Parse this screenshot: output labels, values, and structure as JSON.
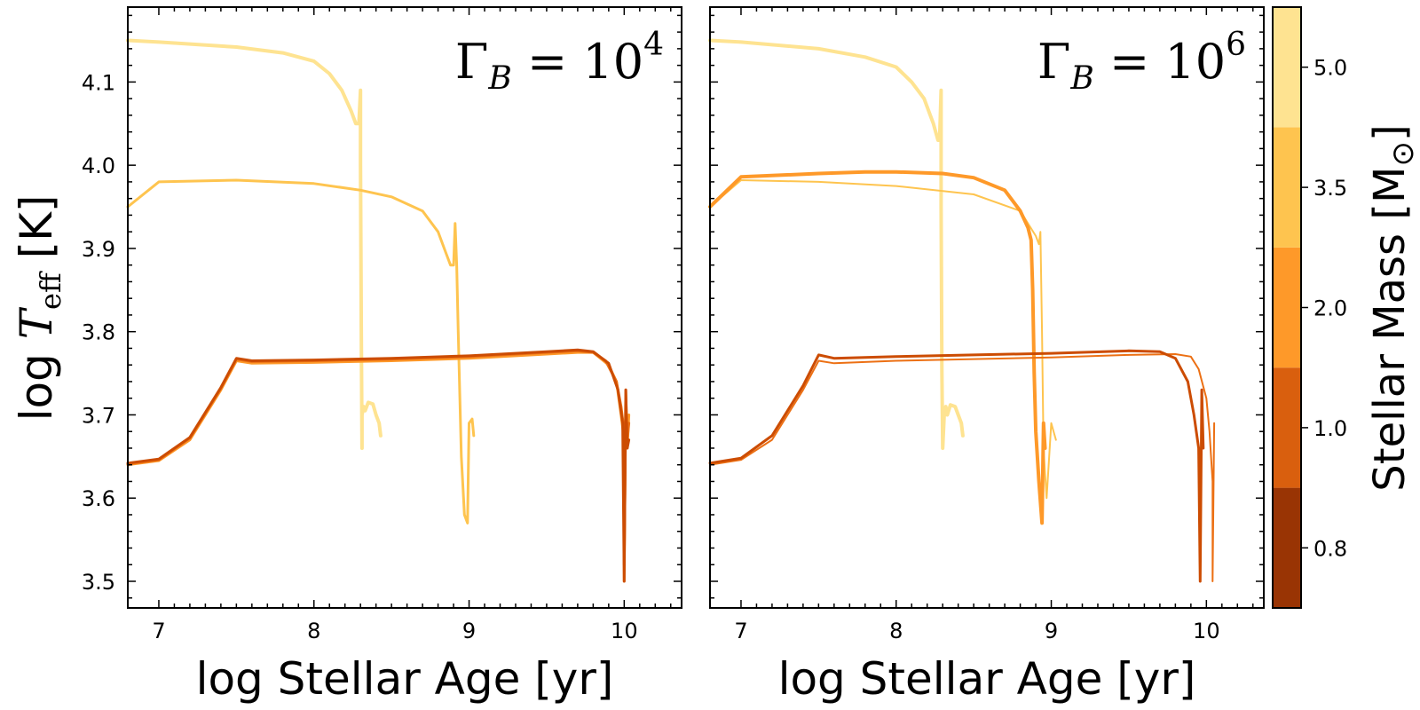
{
  "chart_data": [
    {
      "type": "line",
      "annotation": {
        "prefix": "Γ",
        "sub": "B",
        "eq": " = 10",
        "exp": "4"
      },
      "xlabel": "log Stellar Age [yr]",
      "ylabel": {
        "prefix": "log ",
        "var": "T",
        "sub": "eff",
        "suffix": " [K]"
      },
      "xlim": [
        6.8,
        10.37
      ],
      "ylim": [
        3.468,
        4.19
      ],
      "xticks": [
        "7",
        "8",
        "9",
        "10"
      ],
      "yticks": [
        "3.5",
        "3.6",
        "3.7",
        "3.8",
        "3.9",
        "4.0",
        "4.1"
      ],
      "series": [
        {
          "mass": 5.0,
          "color": "#fee391",
          "width": 4,
          "x": [
            6.8,
            7.0,
            7.5,
            7.8,
            8.0,
            8.1,
            8.18,
            8.24,
            8.27,
            8.29,
            8.3,
            8.3,
            8.305,
            8.31,
            8.31,
            8.32,
            8.33,
            8.35,
            8.38,
            8.4,
            8.42,
            8.43
          ],
          "y": [
            4.15,
            4.148,
            4.142,
            4.135,
            4.125,
            4.11,
            4.09,
            4.065,
            4.05,
            4.05,
            4.09,
            4.0,
            3.8,
            3.66,
            3.7,
            3.71,
            3.705,
            3.715,
            3.713,
            3.7,
            3.69,
            3.675
          ]
        },
        {
          "mass": 3.5,
          "color": "#fec44f",
          "width": 3,
          "x": [
            6.8,
            7.0,
            7.5,
            8.0,
            8.3,
            8.5,
            8.7,
            8.8,
            8.85,
            8.88,
            8.9,
            8.91,
            8.92,
            8.93,
            8.95,
            8.97,
            8.99,
            9.0,
            9.02,
            9.03
          ],
          "y": [
            3.95,
            3.98,
            3.982,
            3.978,
            3.97,
            3.962,
            3.945,
            3.92,
            3.895,
            3.88,
            3.88,
            3.93,
            3.88,
            3.8,
            3.65,
            3.58,
            3.57,
            3.69,
            3.695,
            3.675
          ]
        },
        {
          "mass": 2.0,
          "color": "#fe9929",
          "width": 3,
          "x": [
            6.8,
            7.0,
            7.2,
            7.4,
            7.5,
            7.6,
            8.0,
            8.5,
            9.0,
            9.5,
            9.7,
            9.8,
            9.9,
            9.95,
            9.98,
            10.0,
            10.0,
            10.01,
            10.02,
            10.03
          ],
          "y": [
            3.64,
            3.645,
            3.67,
            3.73,
            3.765,
            3.762,
            3.763,
            3.765,
            3.768,
            3.773,
            3.775,
            3.775,
            3.76,
            3.74,
            3.7,
            3.67,
            3.5,
            3.73,
            3.66,
            3.7
          ]
        },
        {
          "mass": 1.0,
          "color": "#ec7014",
          "width": 3,
          "x": [
            6.8,
            7.0,
            7.2,
            7.4,
            7.5,
            7.6,
            8.0,
            8.5,
            9.0,
            9.5,
            9.7,
            9.8,
            9.88,
            9.95,
            9.98,
            10.0,
            10.0,
            10.01,
            10.02,
            10.03
          ],
          "y": [
            3.641,
            3.646,
            3.672,
            3.732,
            3.767,
            3.764,
            3.765,
            3.767,
            3.77,
            3.775,
            3.777,
            3.775,
            3.765,
            3.74,
            3.71,
            3.68,
            3.52,
            3.71,
            3.67,
            3.69
          ]
        },
        {
          "mass": 0.8,
          "color": "#cc4c02",
          "width": 3,
          "x": [
            6.8,
            7.0,
            7.2,
            7.4,
            7.5,
            7.6,
            8.0,
            8.5,
            9.0,
            9.5,
            9.7,
            9.8,
            9.9,
            9.96,
            9.99,
            10.0,
            10.01,
            10.02,
            10.03
          ],
          "y": [
            3.642,
            3.647,
            3.673,
            3.733,
            3.768,
            3.765,
            3.766,
            3.768,
            3.771,
            3.776,
            3.778,
            3.776,
            3.762,
            3.73,
            3.69,
            3.5,
            3.73,
            3.66,
            3.67
          ]
        }
      ]
    },
    {
      "type": "line",
      "annotation": {
        "prefix": "Γ",
        "sub": "B",
        "eq": " = 10",
        "exp": "6"
      },
      "xlabel": "log Stellar Age [yr]",
      "xlim": [
        6.8,
        10.37
      ],
      "ylim": [
        3.468,
        4.19
      ],
      "xticks": [
        "7",
        "8",
        "9",
        "10"
      ],
      "series": [
        {
          "mass": 5.0,
          "color": "#fee391",
          "width": 4,
          "x": [
            6.8,
            7.0,
            7.5,
            7.8,
            8.0,
            8.1,
            8.18,
            8.24,
            8.27,
            8.28,
            8.29,
            8.29,
            8.295,
            8.3,
            8.31,
            8.32,
            8.33,
            8.35,
            8.38,
            8.4,
            8.42,
            8.43
          ],
          "y": [
            4.15,
            4.148,
            4.14,
            4.13,
            4.118,
            4.1,
            4.08,
            4.05,
            4.03,
            4.03,
            4.09,
            3.95,
            3.75,
            3.66,
            3.7,
            3.71,
            3.7,
            3.712,
            3.71,
            3.7,
            3.69,
            3.675
          ]
        },
        {
          "mass": 3.5,
          "color": "#fec44f",
          "width": 2,
          "x": [
            6.8,
            7.0,
            7.5,
            8.0,
            8.5,
            8.8,
            8.9,
            8.92,
            8.93,
            8.94,
            8.95,
            8.97,
            9.0,
            9.03
          ],
          "y": [
            3.95,
            3.982,
            3.98,
            3.975,
            3.965,
            3.945,
            3.915,
            3.905,
            3.92,
            3.8,
            3.66,
            3.6,
            3.69,
            3.67
          ]
        },
        {
          "mass": 2.0,
          "color": "#fe9929",
          "width": 4,
          "x": [
            6.8,
            7.0,
            7.5,
            7.8,
            8.0,
            8.3,
            8.5,
            8.7,
            8.8,
            8.85,
            8.87,
            8.88,
            8.89,
            8.9,
            8.92,
            8.94,
            8.95,
            8.96
          ],
          "y": [
            3.95,
            3.986,
            3.99,
            3.992,
            3.992,
            3.99,
            3.985,
            3.97,
            3.945,
            3.925,
            3.91,
            3.85,
            3.75,
            3.68,
            3.62,
            3.57,
            3.69,
            3.66
          ]
        },
        {
          "mass": 1.0,
          "color": "#ec7014",
          "width": 2,
          "x": [
            6.8,
            7.0,
            7.2,
            7.4,
            7.5,
            7.6,
            8.0,
            8.5,
            9.0,
            9.5,
            9.8,
            9.9,
            9.95,
            10.0,
            10.02,
            10.04,
            10.04,
            10.05
          ],
          "y": [
            3.64,
            3.646,
            3.67,
            3.73,
            3.765,
            3.762,
            3.765,
            3.767,
            3.769,
            3.772,
            3.773,
            3.77,
            3.755,
            3.72,
            3.68,
            3.62,
            3.5,
            3.69
          ]
        },
        {
          "mass": 0.8,
          "color": "#cc4c02",
          "width": 3,
          "x": [
            6.8,
            7.0,
            7.2,
            7.4,
            7.5,
            7.6,
            8.0,
            8.5,
            9.0,
            9.5,
            9.7,
            9.8,
            9.88,
            9.92,
            9.95,
            9.96,
            9.97,
            9.98
          ],
          "y": [
            3.642,
            3.648,
            3.675,
            3.735,
            3.772,
            3.768,
            3.77,
            3.772,
            3.774,
            3.777,
            3.776,
            3.768,
            3.74,
            3.7,
            3.66,
            3.5,
            3.73,
            3.66
          ]
        }
      ]
    }
  ],
  "colorbar": {
    "label": {
      "text": "Stellar Mass [M",
      "sub": "⊙",
      "close": "]"
    },
    "ticks": [
      "0.8",
      "1.0",
      "2.0",
      "3.5",
      "5.0"
    ],
    "colors": [
      "#993404",
      "#d95f0e",
      "#fe9929",
      "#fec44f",
      "#fee391"
    ]
  }
}
